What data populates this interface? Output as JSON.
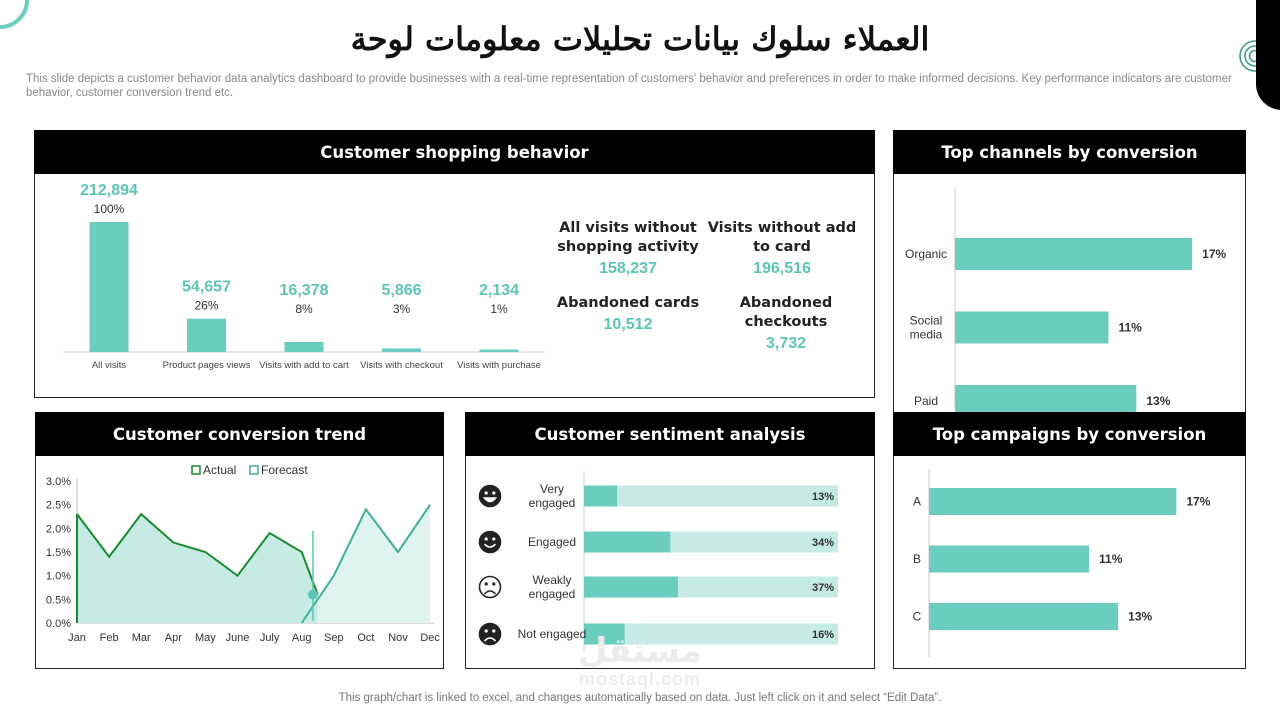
{
  "page": {
    "title": "العملاء سلوك بيانات تحليلات معلومات لوحة",
    "description": "This slide depicts a customer behavior data analytics dashboard to provide businesses with a real-time representation of customers' behavior and preferences in order to make informed decisions. Key performance indicators are customer behavior, customer conversion trend etc.",
    "footnote": "This graph/chart is linked to excel, and changes automatically based on data. Just left click on it and select “Edit Data”.",
    "watermark_ar": "مستقل",
    "watermark_en": "mostaql.com"
  },
  "colors": {
    "accent": "#6bcdbd",
    "accent_light": "#c6ebe5",
    "actual": "#1a8a2e",
    "header": "#000000"
  },
  "panels": {
    "shopping": {
      "title": "Customer shopping behavior",
      "kpis": [
        {
          "label": "All visits without shopping activity",
          "value": "158,237"
        },
        {
          "label": "Visits without add to card",
          "value": "196,516"
        },
        {
          "label": "Abandoned cards",
          "value": "10,512"
        },
        {
          "label": "Abandoned checkouts",
          "value": "3,732"
        }
      ]
    },
    "channels": {
      "title": "Top channels by conversion"
    },
    "conversion": {
      "title": "Customer conversion trend"
    },
    "sentiment": {
      "title": "Customer sentiment analysis"
    },
    "campaigns": {
      "title": "Top campaigns by conversion"
    }
  },
  "chart_data": [
    {
      "id": "shopping",
      "type": "bar",
      "categories": [
        "All visits",
        "Product pages views",
        "Visits with add to cart",
        "Visits with checkout",
        "Visits with purchase"
      ],
      "values": [
        212894,
        54657,
        16378,
        5866,
        2134
      ],
      "value_labels": [
        "212,894",
        "54,657",
        "16,378",
        "5,866",
        "2,134"
      ],
      "percent_labels": [
        "100%",
        "26%",
        "8%",
        "3%",
        "1%"
      ]
    },
    {
      "id": "channels",
      "type": "bar",
      "orientation": "horizontal",
      "categories": [
        "Organic",
        "Social media",
        "Paid"
      ],
      "values": [
        17,
        11,
        13
      ],
      "value_labels": [
        "17%",
        "11%",
        "13%"
      ],
      "xlim": [
        0,
        20
      ]
    },
    {
      "id": "conversion",
      "type": "area",
      "categories": [
        "Jan",
        "Feb",
        "Mar",
        "Apr",
        "May",
        "June",
        "July",
        "Aug",
        "Sep",
        "Oct",
        "Nov",
        "Dec"
      ],
      "series": [
        {
          "name": "Actual",
          "x": [
            0,
            1,
            2,
            3,
            4,
            5,
            6,
            7,
            7.5
          ],
          "values": [
            2.3,
            1.4,
            2.3,
            1.7,
            1.5,
            1.0,
            1.9,
            1.5,
            0.6
          ]
        },
        {
          "name": "Forecast",
          "x": [
            7,
            8,
            9,
            10,
            11
          ],
          "values": [
            0.0,
            1.0,
            2.4,
            1.5,
            2.5
          ]
        }
      ],
      "yticks": [
        "0.0%",
        "0.5%",
        "1.0%",
        "1.5%",
        "2.0%",
        "2.5%",
        "3.0%"
      ],
      "ylim": [
        0,
        3
      ],
      "legend": "top-center"
    },
    {
      "id": "sentiment",
      "type": "bar",
      "orientation": "horizontal",
      "stacked": true,
      "categories": [
        "Very engaged",
        "Engaged",
        "Weakly engaged",
        "Not engaged"
      ],
      "values": [
        13,
        34,
        37,
        16
      ],
      "value_labels": [
        "13%",
        "34%",
        "37%",
        "16%"
      ],
      "xlim": [
        0,
        100
      ],
      "icons": [
        "very-happy-face-icon",
        "smile-face-icon",
        "sad-face-icon",
        "frown-face-icon"
      ]
    },
    {
      "id": "campaigns",
      "type": "bar",
      "orientation": "horizontal",
      "categories": [
        "A",
        "B",
        "C"
      ],
      "values": [
        17,
        11,
        13
      ],
      "value_labels": [
        "17%",
        "11%",
        "13%"
      ],
      "xlim": [
        0,
        20
      ]
    }
  ]
}
